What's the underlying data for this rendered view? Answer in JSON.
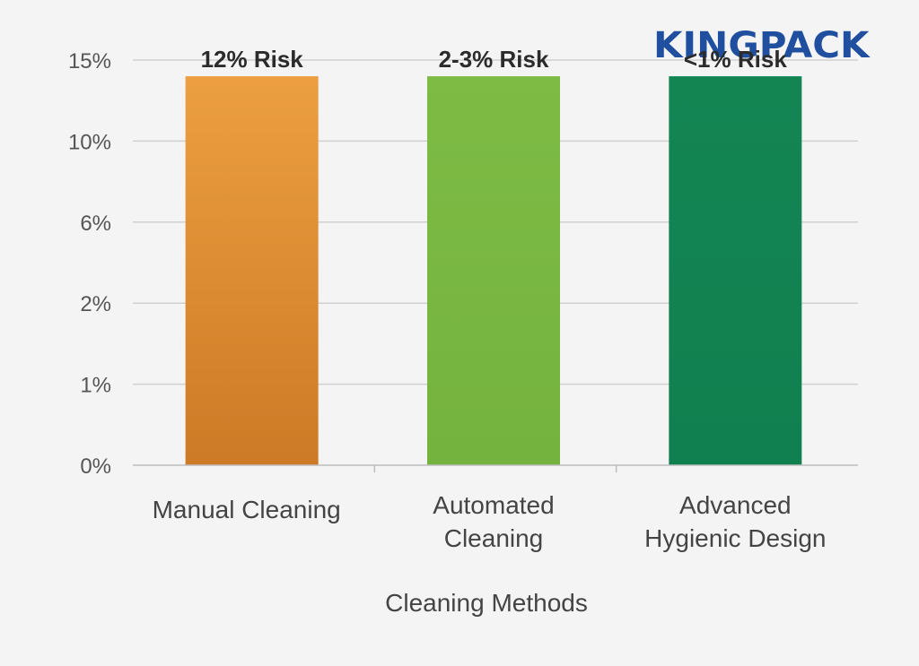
{
  "logo": {
    "text": "KINGPACK",
    "color": "#1f4f9e"
  },
  "chart_data": {
    "type": "bar",
    "xlabel": "Cleaning Methods",
    "y_ticks": [
      "0%",
      "1%",
      "2%",
      "6%",
      "10%",
      "15%"
    ],
    "categories": [
      [
        "Manual Cleaning"
      ],
      [
        "Automated",
        "Cleaning"
      ],
      [
        "Advanced",
        "Hygienic Design"
      ]
    ],
    "data_labels": [
      "12% Risk",
      "2-3% Risk",
      "<1% Risk"
    ],
    "bar_level": 4.8,
    "colors": [
      [
        "#ec9f40",
        "#cd7a26"
      ],
      [
        "#7dbb45",
        "#74b33e"
      ],
      [
        "#138553",
        "#118050"
      ]
    ],
    "grid": true,
    "legend": "none"
  }
}
